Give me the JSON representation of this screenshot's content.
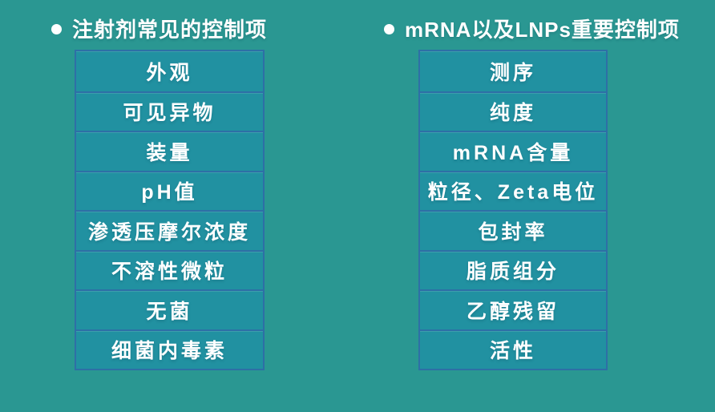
{
  "colors": {
    "page_bg": "#2a9792",
    "cell_bg": "#2191a1",
    "divider": "#2e6fa6",
    "text": "#ffffff"
  },
  "left_panel": {
    "bullet_icon": "●",
    "title": "注射剂常见的控制项",
    "items": [
      "外观",
      "可见异物",
      "装量",
      "pH值",
      "渗透压摩尔浓度",
      "不溶性微粒",
      "无菌",
      "细菌内毒素"
    ]
  },
  "right_panel": {
    "bullet_icon": "●",
    "title": "mRNA以及LNPs重要控制项",
    "items": [
      "测序",
      "纯度",
      "mRNA含量",
      "粒径、Zeta电位",
      "包封率",
      "脂质组分",
      "乙醇残留",
      "活性"
    ]
  }
}
